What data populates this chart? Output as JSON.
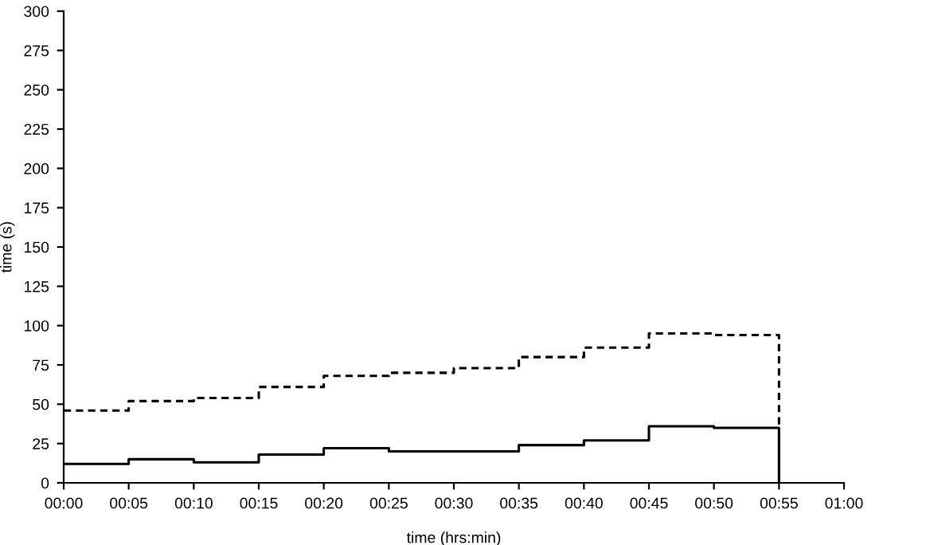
{
  "chart_data": {
    "type": "step",
    "xlabel": "time (hrs:min)",
    "ylabel": "time (s)",
    "x": [
      0,
      0.0833,
      0.1667,
      0.25,
      0.3333,
      0.4167,
      0.5,
      0.5833,
      0.6667,
      0.75,
      0.8333,
      0.9167
    ],
    "series": [
      {
        "color": "#000000",
        "line_style": "solid",
        "values": [
          12,
          15,
          13,
          18,
          22,
          20,
          20,
          24,
          27,
          36,
          35,
          0
        ]
      },
      {
        "color": "#000000",
        "line_style": "dashed",
        "values": [
          46,
          52,
          54,
          61,
          68,
          70,
          73,
          80,
          86,
          95,
          94,
          35
        ]
      }
    ],
    "xlim": [
      0,
      1
    ],
    "ylim": [
      0,
      300
    ],
    "xticks": [
      {
        "value": 0,
        "label": "00:00"
      },
      {
        "value": 0.0833,
        "label": "00:05"
      },
      {
        "value": 0.1667,
        "label": "00:10"
      },
      {
        "value": 0.25,
        "label": "00:15"
      },
      {
        "value": 0.3333,
        "label": "00:20"
      },
      {
        "value": 0.4167,
        "label": "00:25"
      },
      {
        "value": 0.5,
        "label": "00:30"
      },
      {
        "value": 0.5833,
        "label": "00:35"
      },
      {
        "value": 0.6667,
        "label": "00:40"
      },
      {
        "value": 0.75,
        "label": "00:45"
      },
      {
        "value": 0.8333,
        "label": "00:50"
      },
      {
        "value": 0.9167,
        "label": "00:55"
      },
      {
        "value": 1,
        "label": "01:00"
      }
    ],
    "yticks": [
      0,
      25,
      50,
      75,
      100,
      125,
      150,
      175,
      200,
      225,
      250,
      275,
      300
    ],
    "grid": false,
    "legend": false
  }
}
